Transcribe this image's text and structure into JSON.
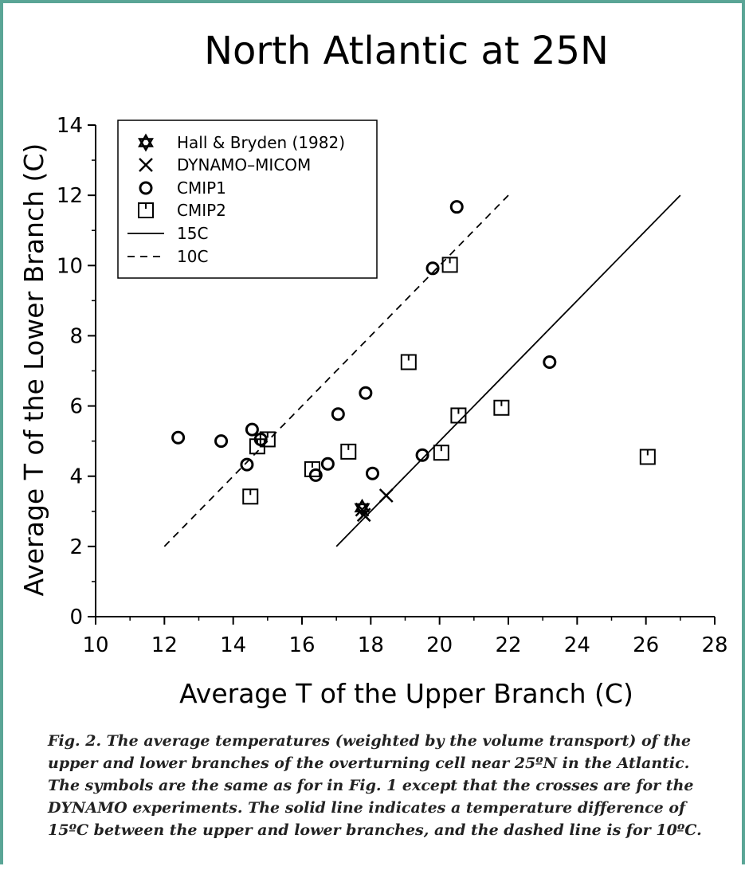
{
  "chart_data": {
    "type": "scatter",
    "title": "North Atlantic at 25N",
    "xlabel": "Average T of the Upper Branch (C)",
    "ylabel": "Average T of the Lower Branch (C)",
    "xlim": [
      10,
      28
    ],
    "ylim": [
      0,
      14
    ],
    "xticks": [
      "10",
      "12",
      "14",
      "16",
      "18",
      "20",
      "22",
      "24",
      "26",
      "28"
    ],
    "yticks": [
      "0",
      "2",
      "4",
      "6",
      "8",
      "10",
      "12",
      "14"
    ],
    "grid": false,
    "legend_position": "top-left",
    "series": [
      {
        "name": "Hall & Bryden (1982)",
        "marker": "star",
        "points": [
          [
            17.75,
            3.1
          ]
        ]
      },
      {
        "name": "DYNAMO–MICOM",
        "marker": "x",
        "points": [
          [
            18.45,
            3.45
          ],
          [
            17.8,
            2.9
          ],
          [
            17.75,
            3.05
          ]
        ]
      },
      {
        "name": "CMIP1",
        "marker": "circle",
        "points": [
          [
            12.4,
            5.1
          ],
          [
            13.65,
            5.0
          ],
          [
            14.4,
            4.33
          ],
          [
            14.55,
            5.33
          ],
          [
            14.8,
            5.05
          ],
          [
            16.4,
            4.03
          ],
          [
            16.75,
            4.35
          ],
          [
            17.05,
            5.77
          ],
          [
            17.85,
            6.37
          ],
          [
            18.05,
            4.08
          ],
          [
            19.5,
            4.6
          ],
          [
            19.8,
            9.92
          ],
          [
            20.5,
            11.67
          ],
          [
            23.2,
            7.25
          ]
        ]
      },
      {
        "name": "CMIP2",
        "marker": "square-tick",
        "points": [
          [
            14.5,
            3.42
          ],
          [
            14.7,
            4.85
          ],
          [
            15.0,
            5.05
          ],
          [
            16.3,
            4.2
          ],
          [
            17.35,
            4.7
          ],
          [
            19.1,
            7.25
          ],
          [
            20.05,
            4.67
          ],
          [
            20.3,
            10.02
          ],
          [
            20.55,
            5.73
          ],
          [
            21.8,
            5.95
          ],
          [
            26.05,
            4.55
          ]
        ]
      },
      {
        "name": "15C",
        "style": "solid",
        "points": [
          [
            17,
            2
          ],
          [
            27,
            12
          ]
        ]
      },
      {
        "name": "10C",
        "style": "dashed",
        "points": [
          [
            12,
            2
          ],
          [
            22,
            12
          ]
        ]
      }
    ]
  },
  "caption": "Fig. 2. The average temperatures (weighted by the volume transport) of the upper and lower branches of the overturning cell near 25ºN in the Atlantic. The symbols are the same as for in Fig. 1 except that the crosses are for the DYNAMO experiments. The solid line indicates a temperature difference of 15ºC between the upper and lower branches, and the dashed line is for 10ºC."
}
